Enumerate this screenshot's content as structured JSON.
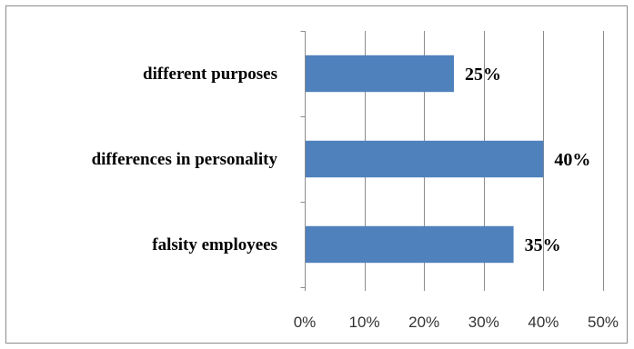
{
  "chart_data": {
    "type": "bar",
    "orientation": "horizontal",
    "categories": [
      "different purposes",
      "differences in personality",
      "falsity employees"
    ],
    "values": [
      25,
      40,
      35
    ],
    "data_labels": [
      "25%",
      "40%",
      "35%"
    ],
    "xlim": [
      0,
      50
    ],
    "x_ticks": [
      0,
      10,
      20,
      30,
      40,
      50
    ],
    "x_tick_labels": [
      "0%",
      "10%",
      "20%",
      "30%",
      "40%",
      "50%"
    ],
    "grid": "vertical",
    "legend": "none",
    "bar_color": "#4F81BD",
    "title": "",
    "xlabel": "",
    "ylabel": ""
  }
}
